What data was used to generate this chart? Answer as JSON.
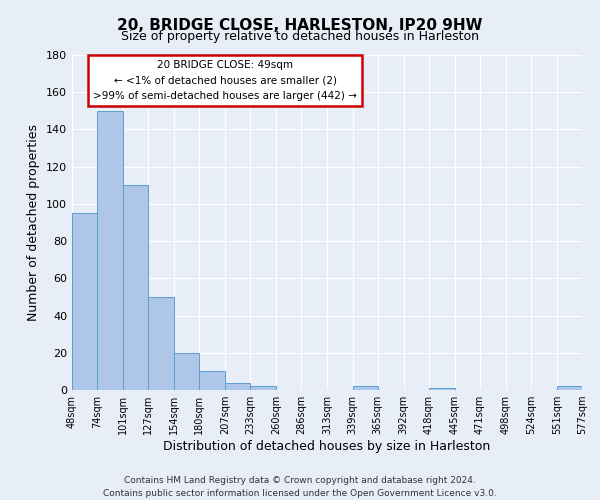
{
  "title": "20, BRIDGE CLOSE, HARLESTON, IP20 9HW",
  "subtitle": "Size of property relative to detached houses in Harleston",
  "xlabel": "Distribution of detached houses by size in Harleston",
  "ylabel": "Number of detached properties",
  "bar_color": "#aec6e8",
  "bar_edge_color": "#5a9fd4",
  "background_color": "#e8eef7",
  "plot_bg_color": "#e8eef7",
  "grid_color": "#ffffff",
  "annotation_box_color": "#cc0000",
  "annotation_line1": "20 BRIDGE CLOSE: 49sqm",
  "annotation_line2": "← <1% of detached houses are smaller (2)",
  "annotation_line3": ">99% of semi-detached houses are larger (442) →",
  "bin_edges": [
    48,
    74,
    101,
    127,
    154,
    180,
    207,
    233,
    260,
    286,
    313,
    339,
    365,
    392,
    418,
    445,
    471,
    498,
    524,
    551,
    577
  ],
  "bin_labels": [
    "48sqm",
    "74sqm",
    "101sqm",
    "127sqm",
    "154sqm",
    "180sqm",
    "207sqm",
    "233sqm",
    "260sqm",
    "286sqm",
    "313sqm",
    "339sqm",
    "365sqm",
    "392sqm",
    "418sqm",
    "445sqm",
    "471sqm",
    "498sqm",
    "524sqm",
    "551sqm",
    "577sqm"
  ],
  "counts": [
    95,
    150,
    110,
    50,
    20,
    10,
    4,
    2,
    0,
    0,
    0,
    2,
    0,
    0,
    1,
    0,
    0,
    0,
    0,
    2
  ],
  "ylim": [
    0,
    180
  ],
  "yticks": [
    0,
    20,
    40,
    60,
    80,
    100,
    120,
    140,
    160,
    180
  ],
  "footer_line1": "Contains HM Land Registry data © Crown copyright and database right 2024.",
  "footer_line2": "Contains public sector information licensed under the Open Government Licence v3.0."
}
